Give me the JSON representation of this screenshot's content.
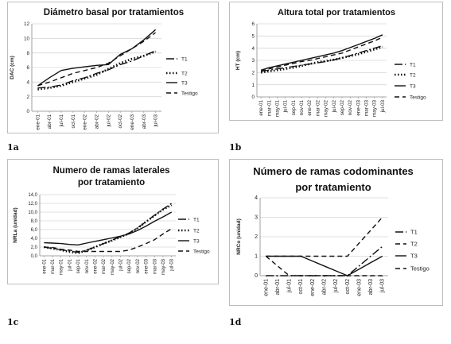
{
  "chart_data": [
    {
      "type": "line",
      "title": "Diámetro basal por tratamientos",
      "xlabel": "",
      "ylabel": "DAC (cm)",
      "ylim": [
        0,
        12
      ],
      "yticks": [
        "0",
        "2",
        "4",
        "6",
        "8",
        "10",
        "12"
      ],
      "categories": [
        "ene-01",
        "abr-01",
        "jul-01",
        "oct-01",
        "ene-02",
        "abr-02",
        "jul-02",
        "oct-02",
        "ene-03",
        "abr-03",
        "jul-03"
      ],
      "legend_position": "right",
      "grid": true,
      "series": [
        {
          "name": "T1",
          "dash": "10,3,2,3",
          "width": 1.4,
          "values": [
            3.2,
            3.3,
            3.6,
            4.2,
            4.6,
            5.2,
            5.7,
            6.4,
            6.9,
            7.6,
            8.3
          ]
        },
        {
          "name": "T2",
          "dash": "1.5,2.5",
          "width": 2.6,
          "values": [
            3.0,
            3.2,
            3.5,
            4.0,
            4.5,
            5.0,
            5.8,
            6.6,
            7.2,
            7.6,
            8.2
          ]
        },
        {
          "name": "T3",
          "dash": "",
          "width": 1.4,
          "values": [
            3.5,
            4.6,
            5.6,
            5.9,
            6.1,
            6.3,
            6.4,
            7.8,
            8.6,
            9.8,
            11.2
          ]
        },
        {
          "name": "Testigo",
          "dash": "6,4",
          "width": 1.4,
          "values": [
            3.5,
            4.0,
            4.6,
            5.2,
            5.6,
            6.0,
            6.6,
            7.6,
            8.6,
            9.6,
            10.8
          ]
        }
      ]
    },
    {
      "type": "line",
      "title": "Altura total por tratamientos",
      "xlabel": "",
      "ylabel": "HT (cm)",
      "ylim": [
        0,
        6
      ],
      "yticks": [
        "0",
        "1",
        "2",
        "3",
        "4",
        "5",
        "6"
      ],
      "categories": [
        "ene-01",
        "mar-01",
        "may-01",
        "jul-01",
        "sep-01",
        "nov-01",
        "ene-02",
        "mar-02",
        "may-02",
        "jul-02",
        "sep-02",
        "nov-02",
        "ene-03",
        "mar-03",
        "may-03",
        "jul-03"
      ],
      "legend_position": "right",
      "grid": true,
      "series": [
        {
          "name": "T1",
          "dash": "10,3,2,3",
          "width": 1.4,
          "values": [
            2.1,
            2.2,
            2.3,
            2.4,
            2.5,
            2.6,
            2.7,
            2.8,
            2.9,
            3.05,
            3.2,
            3.4,
            3.6,
            3.8,
            4.0,
            4.2
          ]
        },
        {
          "name": "T2",
          "dash": "1.5,2.5",
          "width": 2.6,
          "values": [
            2.0,
            2.1,
            2.2,
            2.3,
            2.4,
            2.55,
            2.7,
            2.85,
            2.95,
            3.05,
            3.2,
            3.35,
            3.5,
            3.7,
            3.9,
            4.1
          ]
        },
        {
          "name": "T3",
          "dash": "",
          "width": 1.4,
          "values": [
            2.2,
            2.4,
            2.55,
            2.7,
            2.85,
            3.0,
            3.15,
            3.3,
            3.45,
            3.6,
            3.8,
            4.05,
            4.3,
            4.55,
            4.8,
            5.1
          ]
        },
        {
          "name": "Testigo",
          "dash": "6,4",
          "width": 1.4,
          "values": [
            2.1,
            2.3,
            2.45,
            2.6,
            2.75,
            2.9,
            3.0,
            3.15,
            3.3,
            3.45,
            3.6,
            3.85,
            4.1,
            4.35,
            4.6,
            4.9
          ]
        }
      ]
    },
    {
      "type": "line",
      "title": "Numero de ramas laterales por tratamiento",
      "xlabel": "",
      "ylabel": "NRLa (unidad)",
      "ylim": [
        0,
        14
      ],
      "yticks": [
        "0,0",
        "2,0",
        "4,0",
        "6,0",
        "8,0",
        "10,0",
        "12,0",
        "14,0"
      ],
      "categories": [
        "ene-01",
        "mar-01",
        "may-01",
        "jul-01",
        "sep-01",
        "nov-01",
        "ene-02",
        "mar-02",
        "may-02",
        "jul-02",
        "sep-02",
        "nov-02",
        "ene-03",
        "mar-03",
        "may-03",
        "jul-03"
      ],
      "legend_position": "right",
      "grid": true,
      "series": [
        {
          "name": "T1",
          "dash": "10,3,2,3",
          "width": 1.4,
          "values": [
            2.0,
            1.7,
            1.4,
            1.1,
            0.8,
            1.3,
            2.0,
            2.8,
            3.6,
            4.4,
            5.2,
            6.4,
            7.8,
            9.3,
            10.7,
            12.0
          ]
        },
        {
          "name": "T2",
          "dash": "1.5,2.5",
          "width": 2.6,
          "values": [
            2.0,
            1.7,
            1.3,
            0.9,
            0.6,
            1.2,
            2.0,
            2.8,
            3.5,
            4.3,
            5.1,
            6.3,
            7.8,
            9.2,
            10.6,
            11.6
          ]
        },
        {
          "name": "T3",
          "dash": "",
          "width": 1.4,
          "values": [
            3.0,
            2.9,
            2.8,
            2.6,
            2.5,
            2.9,
            3.3,
            3.7,
            4.1,
            4.5,
            5.0,
            5.8,
            6.8,
            7.9,
            8.9,
            10.0
          ]
        },
        {
          "name": "Testigo",
          "dash": "6,4",
          "width": 1.4,
          "values": [
            2.0,
            1.9,
            1.5,
            1.3,
            1.0,
            1.0,
            1.0,
            1.0,
            1.0,
            1.0,
            1.3,
            2.0,
            2.8,
            3.7,
            5.0,
            6.2
          ]
        }
      ]
    },
    {
      "type": "line",
      "title": "Número de ramas codominantes por tratamiento",
      "xlabel": "",
      "ylabel": "NRCo (unidad)",
      "ylim": [
        0,
        4
      ],
      "yticks": [
        "0",
        "1",
        "2",
        "3",
        "4"
      ],
      "categories": [
        "ene-01",
        "abr-01",
        "jul-01",
        "oct-01",
        "ene-02",
        "abr-02",
        "jul-02",
        "oct-02",
        "ene-03",
        "abr-03",
        "jul-03"
      ],
      "legend_position": "right",
      "grid": true,
      "series": [
        {
          "name": "T1",
          "dash": "10,3,2,3",
          "width": 1.4,
          "values": [
            0,
            0,
            0,
            0,
            0,
            0,
            0,
            0,
            0.5,
            1.0,
            1.5
          ]
        },
        {
          "name": "T2",
          "dash": "6,4",
          "width": 1.4,
          "values": [
            1.0,
            0.5,
            0,
            0,
            0,
            0,
            0,
            0,
            0,
            0,
            0
          ]
        },
        {
          "name": "T3",
          "dash": "",
          "width": 1.4,
          "values": [
            1.0,
            1.0,
            1.0,
            1.0,
            0.75,
            0.5,
            0.25,
            0,
            0.33,
            0.67,
            1.0
          ]
        },
        {
          "name": "Testigo",
          "dash": "6,4",
          "width": 1.4,
          "values": [
            1.0,
            1.0,
            1.0,
            1.0,
            1.0,
            1.0,
            1.0,
            1.0,
            1.67,
            2.33,
            3.0
          ]
        }
      ]
    }
  ],
  "captions": [
    "1a",
    "1b",
    "1c",
    "1d"
  ]
}
